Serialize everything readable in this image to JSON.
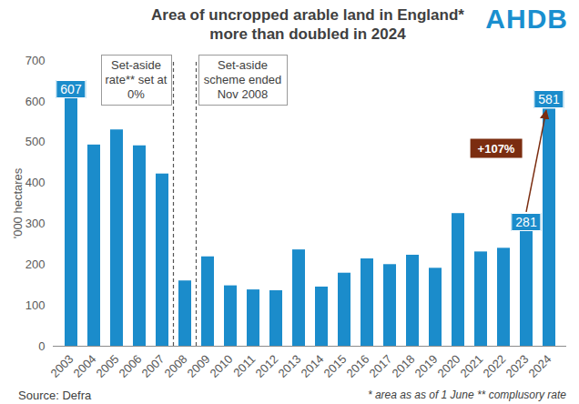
{
  "chart_data": {
    "type": "bar",
    "title": [
      "Area of uncropped arable land in England*",
      "more than doubled in 2024"
    ],
    "logo": "AHDB",
    "ylabel": "'000 hectares",
    "categories": [
      "2003",
      "2004",
      "2005",
      "2006",
      "2007",
      "2008",
      "2009",
      "2010",
      "2011",
      "2012",
      "2013",
      "2014",
      "2015",
      "2016",
      "2017",
      "2018",
      "2019",
      "2020",
      "2021",
      "2022",
      "2023",
      "2024"
    ],
    "values": [
      607,
      493,
      530,
      491,
      422,
      160,
      219,
      148,
      138,
      136,
      236,
      145,
      179,
      214,
      200,
      223,
      191,
      325,
      231,
      240,
      281,
      581
    ],
    "value_labels": [
      "607",
      null,
      null,
      null,
      null,
      null,
      null,
      null,
      null,
      null,
      null,
      null,
      null,
      null,
      null,
      null,
      null,
      null,
      null,
      null,
      "281",
      "581"
    ],
    "data_labels": true,
    "color": "#1b8ccb",
    "ylim": [
      0,
      700
    ],
    "yticks": [
      0,
      100,
      200,
      300,
      400,
      500,
      600,
      700
    ],
    "grid": false,
    "annotations": [
      {
        "text": "Set-aside rate** set at 0%",
        "line_between": [
          "2007",
          "2008"
        ]
      },
      {
        "text": "Set-aside scheme ended Nov 2008",
        "line_between": [
          "2008",
          "2009"
        ]
      },
      {
        "text": "+107%",
        "arrow": [
          "2023",
          "2024"
        ],
        "color": "#7b2d10"
      }
    ],
    "source": "Source: Defra",
    "footnote": "* area as as of 1 June ** complusory rate"
  }
}
